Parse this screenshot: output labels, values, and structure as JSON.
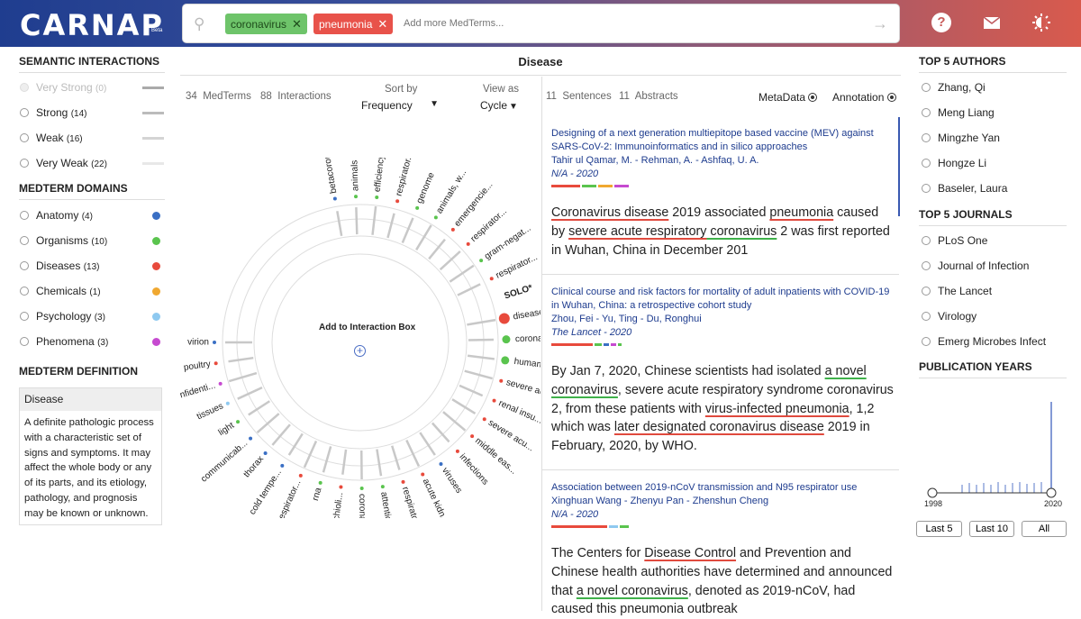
{
  "header": {
    "logo": "CARNAP",
    "beta": "Beta",
    "search_icon": "search-icon",
    "chips": [
      {
        "label": "coronavirus",
        "close": "✕"
      },
      {
        "label": "pneumonia",
        "close": "✕"
      }
    ],
    "placeholder": "Add more MedTerms...",
    "icons": [
      "help-icon",
      "mail-icon",
      "theme-icon"
    ]
  },
  "left": {
    "semantic_title": "SEMANTIC INTERACTIONS",
    "semantic": [
      {
        "label": "Very Strong",
        "count": "(0)"
      },
      {
        "label": "Strong",
        "count": "(14)"
      },
      {
        "label": "Weak",
        "count": "(16)"
      },
      {
        "label": "Very Weak",
        "count": "(22)"
      }
    ],
    "domains_title": "MEDTERM DOMAINS",
    "domains": [
      {
        "label": "Anatomy",
        "count": "(4)",
        "color": "#3a6fc4"
      },
      {
        "label": "Organisms",
        "count": "(10)",
        "color": "#5ac44e"
      },
      {
        "label": "Diseases",
        "count": "(13)",
        "color": "#e84a3c"
      },
      {
        "label": "Chemicals",
        "count": "(1)",
        "color": "#f0a830"
      },
      {
        "label": "Psychology",
        "count": "(3)",
        "color": "#8ec9f0"
      },
      {
        "label": "Phenomena",
        "count": "(3)",
        "color": "#c64ad0"
      }
    ],
    "definition_title": "MEDTERM DEFINITION",
    "definition_term": "Disease",
    "definition_text": "A definite pathologic process with a characteristic set of signs and symptoms. It may affect the whole body or any of its parts, and its etiology, pathology, and prognosis may be known or unknown."
  },
  "main": {
    "title": "Disease",
    "medterms": "34",
    "medterms_label": "MedTerms",
    "interactions": "88",
    "interactions_label": "Interactions",
    "sort_label": "Sort by",
    "sort_value": "Frequency",
    "view_label": "View as",
    "view_value": "Cycle",
    "add_box": "Add to Interaction Box",
    "solo": "SOLO*",
    "terms": [
      "betacorona...",
      "animals",
      "efficiency",
      "respirator...",
      "genome",
      "animals, w...",
      "emergencie...",
      "respirator...",
      "gram-negat...",
      "respirator...",
      "SOLO*",
      "disease",
      "coronaviru...",
      "humans",
      "severe acu...",
      "renal insu...",
      "severe acu...",
      "middle eas...",
      "infections",
      "viruses",
      "acute kidn...",
      "respirator...",
      "attention",
      "coronaviru...",
      "bronchioli...",
      "rna",
      "respirator...",
      "cold tempe...",
      "thorax",
      "communicab...",
      "light",
      "tissues",
      "confidenti...",
      "poultry",
      "virion"
    ]
  },
  "right_pane": {
    "sentences": "11",
    "sentences_label": "Sentences",
    "abstracts": "11",
    "abstracts_label": "Abstracts",
    "metadata": "MetaData",
    "annotation": "Annotation",
    "articles": [
      {
        "title": "Designing of a next generation multiepitope based vaccine (MEV) against SARS-CoV-2: Immunoinformatics and in silico approaches",
        "authors": "Tahir ul Qamar, M. - Rehman, A. - Ashfaq, U. A.",
        "journal": "N/A - 2020"
      },
      {
        "title": "Clinical course and risk factors for mortality of adult inpatients with COVID-19 in Wuhan, China: a retrospective cohort study",
        "authors": "Zhou, Fei - Yu, Ting - Du, Ronghui",
        "journal": "The Lancet - 2020"
      },
      {
        "title": "Association between 2019-nCoV transmission and N95 respirator use",
        "authors": "Xinghuan Wang - Zhenyu Pan - Zhenshun Cheng",
        "journal": "N/A - 2020"
      }
    ]
  },
  "sidebar": {
    "authors_title": "TOP 5 AUTHORS",
    "authors": [
      "Zhang, Qi",
      "Meng Liang",
      "Mingzhe Yan",
      "Hongze Li",
      "Baseler, Laura"
    ],
    "journals_title": "TOP 5 JOURNALS",
    "journals": [
      "PLoS One",
      "Journal of Infection",
      "The Lancet",
      "Virology",
      "Emerg Microbes Infect"
    ],
    "years_title": "PUBLICATION YEARS",
    "year_min": "1998",
    "year_max": "2020",
    "buttons": [
      "Last 5",
      "Last 10",
      "All"
    ]
  }
}
